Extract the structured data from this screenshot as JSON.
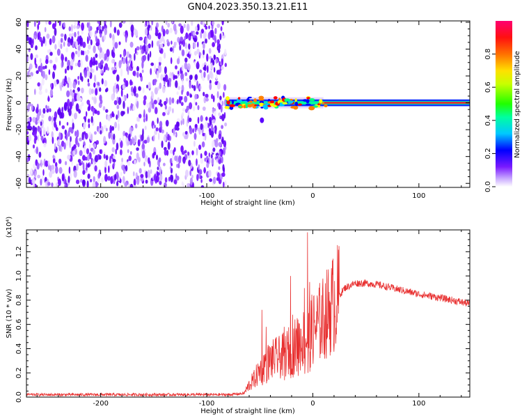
{
  "title": "GN04.2023.350.13.21.E11",
  "chart_data": [
    {
      "type": "heatmap",
      "name": "spectrogram",
      "xlabel": "Height of straight line (km)",
      "ylabel": "Frequency (Hz)",
      "xlim": [
        -270,
        148
      ],
      "ylim": [
        -63,
        61
      ],
      "xticks": [
        -200,
        -100,
        0,
        100
      ],
      "yticks": [
        -60,
        -40,
        -20,
        0,
        20,
        40,
        60
      ],
      "grid": false,
      "noise_region_x": [
        -270,
        -82
      ],
      "signal_region_x": [
        -82,
        148
      ],
      "signal_center_frequency": 0,
      "signal_band_half_width": 2,
      "colorscale": [
        "#ffffff",
        "#9a4dff",
        "#5a00ff",
        "#0000ff",
        "#00c8ff",
        "#00ff80",
        "#40ff00",
        "#ffff00",
        "#ff8000",
        "#ff0000",
        "#ff0060"
      ],
      "colorbar": {
        "label": "Normalized spectral amplitude",
        "range": [
          0,
          1
        ],
        "ticks": [
          "0.0",
          "0.2",
          "0.4",
          "0.6",
          "0.8"
        ]
      }
    },
    {
      "type": "line",
      "name": "snr",
      "xlabel": "Height of straight line (km)",
      "ylabel": "SNR (10 * v/v)",
      "y_multiplier_label": "(x10⁴)",
      "xlim": [
        -270,
        148
      ],
      "ylim": [
        0,
        1.38
      ],
      "xticks": [
        -200,
        -100,
        0,
        100
      ],
      "yticks": [
        "0.0",
        "0.2",
        "0.4",
        "0.6",
        "0.8",
        "1.0",
        "1.2"
      ],
      "grid": false,
      "color": "#e83030",
      "series": [
        {
          "x": [
            -270,
            -200,
            -150,
            -100,
            -80,
            -65,
            -60,
            -55,
            -50,
            -45,
            -40,
            -35,
            -30,
            -25,
            -20,
            -15,
            -10,
            -5,
            0,
            10,
            20,
            30,
            40,
            50,
            60,
            80,
            100,
            120,
            148
          ],
          "y": [
            0.02,
            0.02,
            0.02,
            0.02,
            0.02,
            0.03,
            0.1,
            0.15,
            0.22,
            0.28,
            0.3,
            0.32,
            0.33,
            0.36,
            0.4,
            0.43,
            0.47,
            0.5,
            0.56,
            0.65,
            0.78,
            0.9,
            0.94,
            0.94,
            0.93,
            0.89,
            0.85,
            0.82,
            0.77
          ]
        }
      ],
      "peaks": [
        {
          "x": -48,
          "y": 0.72
        },
        {
          "x": -44,
          "y": 0.58
        },
        {
          "x": -27,
          "y": 0.58
        },
        {
          "x": -21,
          "y": 1.0
        },
        {
          "x": -19,
          "y": 0.68
        },
        {
          "x": -14,
          "y": 0.64
        },
        {
          "x": -8,
          "y": 0.9
        },
        {
          "x": -5,
          "y": 1.36
        },
        {
          "x": -3,
          "y": 0.95
        }
      ]
    }
  ]
}
